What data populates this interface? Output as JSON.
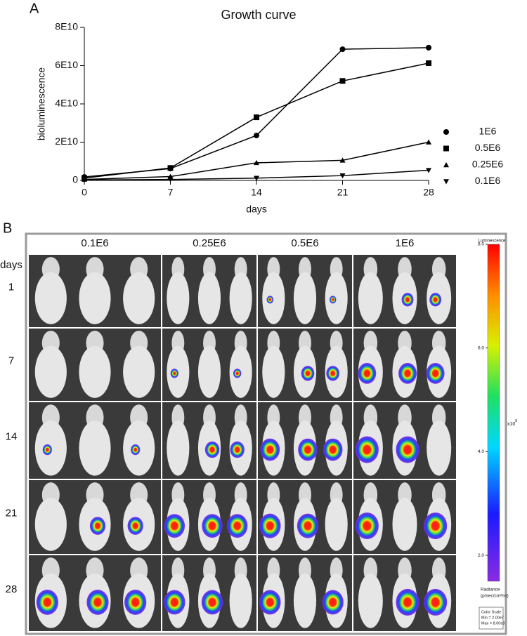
{
  "chart_data": {
    "type": "line",
    "panel_label": "A",
    "title": "Growth curve",
    "x_label": "days",
    "y_label": "bioluminescence",
    "x": [
      0,
      7,
      14,
      21,
      28
    ],
    "xlim": [
      0,
      28
    ],
    "xticks": [
      0,
      7,
      14,
      21,
      28
    ],
    "ylim": [
      0,
      80000000000
    ],
    "yticks": [
      0,
      {
        "value": 20000000000,
        "label": "2E10"
      },
      {
        "value": 40000000000,
        "label": "4E10"
      },
      {
        "value": 60000000000,
        "label": "6E10"
      },
      {
        "value": 80000000000,
        "label": "8E10"
      }
    ],
    "legend": "right",
    "series": [
      {
        "name": "1E6",
        "color": "#000000",
        "marker": "circle",
        "values": [
          1800000000,
          6200000000,
          23500000000,
          68600000000,
          69400000000
        ]
      },
      {
        "name": "0.5E6",
        "color": "#000000",
        "marker": "square",
        "values": [
          1200000000,
          6500000000,
          33000000000,
          52000000000,
          61300000000
        ]
      },
      {
        "name": "0.25E6",
        "color": "#000000",
        "marker": "triangle-up",
        "values": [
          500000000,
          2000000000,
          9200000000,
          10500000000,
          20000000000
        ]
      },
      {
        "name": "0.1E6",
        "color": "#000000",
        "marker": "triangle-down",
        "values": [
          200000000,
          500000000,
          1200000000,
          2500000000,
          5300000000
        ]
      }
    ]
  },
  "panel_b": {
    "label": "B",
    "days_label": "days",
    "columns": [
      "0.1E6",
      "0.25E6",
      "0.5E6",
      "1E6"
    ],
    "rows": [
      "1",
      "7",
      "14",
      "21",
      "28"
    ],
    "colorbar": {
      "title": "Luminescence",
      "lim": [
        1.5,
        8
      ],
      "ticks": [
        {
          "value": 2,
          "label": "2.0"
        },
        {
          "value": 4,
          "label": "4.0"
        },
        {
          "value": 6,
          "label": "6.0"
        },
        {
          "value": 8,
          "label": "8.0"
        }
      ],
      "exponent_base": "x10",
      "exponent_power": "8",
      "unit_title": "Radiance",
      "unit": "(p/sec/cm²/sr)",
      "scale_title": "Color Scale",
      "min": "Min = 2.00e7",
      "max": "Max = 8.00e8"
    }
  }
}
